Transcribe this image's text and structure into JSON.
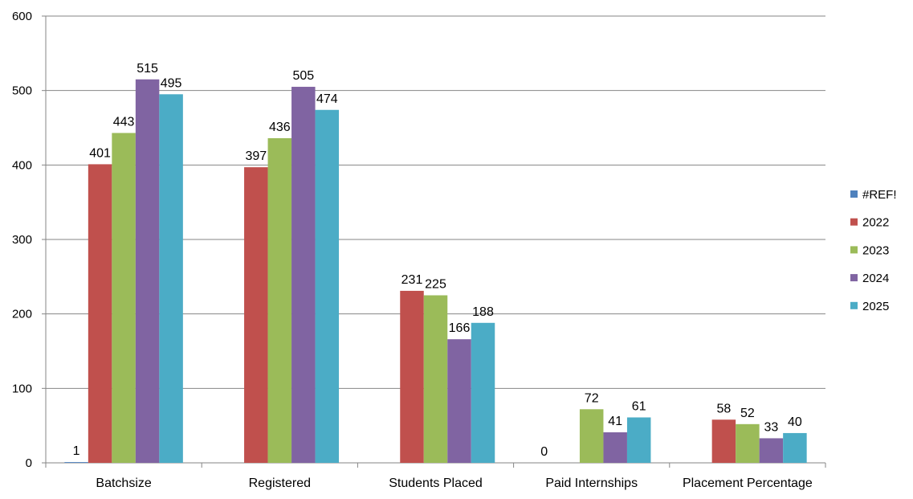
{
  "chart_data": {
    "type": "bar",
    "categories": [
      "Batchsize",
      "Registered",
      "Students Placed",
      "Paid Internships",
      "Placement Percentage"
    ],
    "series": [
      {
        "name": "#REF!",
        "color": "#4F81BD",
        "values": [
          1,
          null,
          null,
          0,
          null
        ]
      },
      {
        "name": "2022",
        "color": "#C0504D",
        "values": [
          401,
          397,
          231,
          null,
          58
        ]
      },
      {
        "name": "2023",
        "color": "#9BBB59",
        "values": [
          443,
          436,
          225,
          72,
          52
        ]
      },
      {
        "name": "2024",
        "color": "#8064A2",
        "values": [
          515,
          505,
          166,
          41,
          33
        ]
      },
      {
        "name": "2025",
        "color": "#4BACC6",
        "values": [
          495,
          474,
          188,
          61,
          40
        ]
      }
    ],
    "ylim": [
      0,
      600
    ],
    "yticks": [
      0,
      100,
      200,
      300,
      400,
      500,
      600
    ],
    "grid": true,
    "legend": "right",
    "data_labels": true
  }
}
